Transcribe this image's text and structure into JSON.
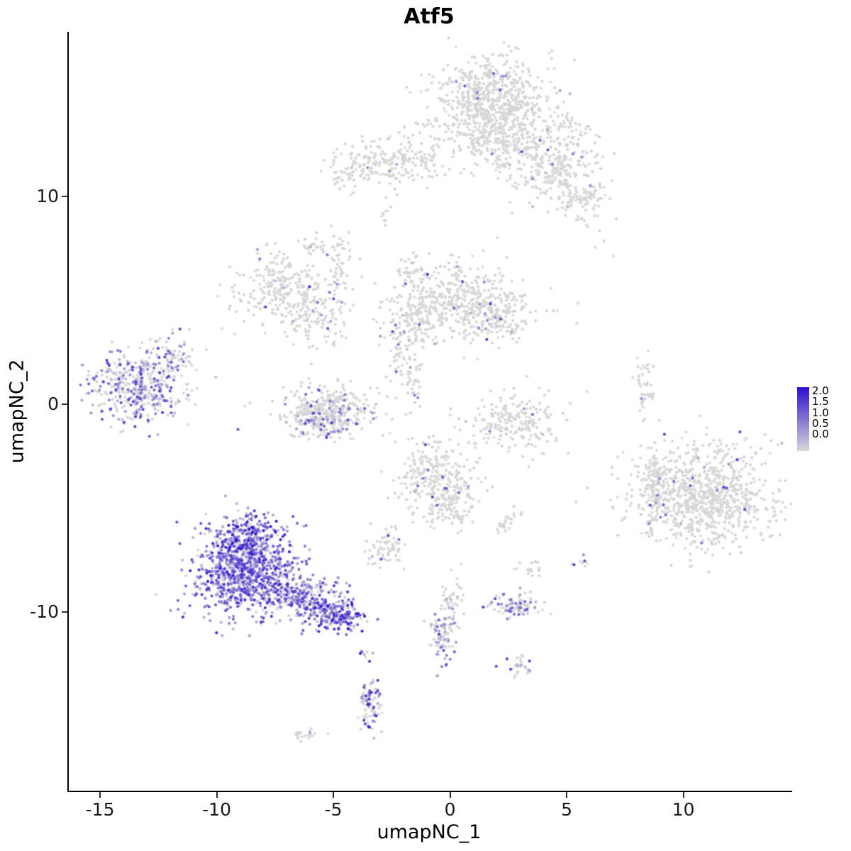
{
  "chart_data": {
    "type": "scatter",
    "title": "Atf5",
    "xlabel": "umapNC_1",
    "ylabel": "umapNC_2",
    "xlim": [
      -16.4,
      14.6
    ],
    "ylim": [
      -18.6,
      17.9
    ],
    "grid": false,
    "point_radius": 2.1,
    "color_low": "#D8D8D8",
    "color_high": "#2C0FD1",
    "value_min": 0.0,
    "value_max": 2.0,
    "x_ticks": [
      {
        "label": "-15",
        "value": -15
      },
      {
        "label": "-10",
        "value": -10
      },
      {
        "label": "-5",
        "value": -5
      },
      {
        "label": "0",
        "value": 0
      },
      {
        "label": "5",
        "value": 5
      },
      {
        "label": "10",
        "value": 10
      }
    ],
    "y_ticks": [
      {
        "label": "10",
        "value": 10
      },
      {
        "label": "0",
        "value": 0
      },
      {
        "label": "-10",
        "value": -10
      }
    ],
    "clusters": [
      {
        "x": 1.6,
        "y": 14.6,
        "sx": 1.15,
        "sy": 1.0,
        "n": 650,
        "f": 0.02,
        "m": 0.9
      },
      {
        "x": 1.3,
        "y": 12.9,
        "sx": 1.3,
        "sy": 0.7,
        "n": 130,
        "f": 0.02,
        "m": 0.8
      },
      {
        "x": 3.0,
        "y": 12.2,
        "sx": 0.8,
        "sy": 0.8,
        "n": 140,
        "f": 0.03,
        "m": 0.8
      },
      {
        "x": 4.5,
        "y": 11.4,
        "sx": 0.9,
        "sy": 0.8,
        "n": 200,
        "f": 0.03,
        "m": 0.9
      },
      {
        "x": 5.6,
        "y": 9.9,
        "sx": 0.6,
        "sy": 0.5,
        "n": 90,
        "f": 0.02,
        "m": 0.8
      },
      {
        "x": 5.0,
        "y": 13.2,
        "sx": 0.5,
        "sy": 0.5,
        "n": 50,
        "f": 0.02,
        "m": 0.8
      },
      {
        "x": -2.3,
        "y": 11.7,
        "sx": 1.3,
        "sy": 0.55,
        "n": 200,
        "f": 0.015,
        "m": 0.8
      },
      {
        "x": -4.4,
        "y": 11.3,
        "sx": 0.5,
        "sy": 0.4,
        "n": 50,
        "f": 0.02,
        "m": 0.8
      },
      {
        "x": -2.9,
        "y": 9.1,
        "sx": 0.15,
        "sy": 0.3,
        "n": 10,
        "f": 0.0,
        "m": 0.0
      },
      {
        "x": -7.3,
        "y": 5.6,
        "sx": 1.0,
        "sy": 0.85,
        "n": 260,
        "f": 0.04,
        "m": 1.0
      },
      {
        "x": -5.7,
        "y": 4.3,
        "sx": 0.7,
        "sy": 0.7,
        "n": 110,
        "f": 0.05,
        "m": 1.0
      },
      {
        "x": -4.9,
        "y": 6.6,
        "sx": 0.3,
        "sy": 0.9,
        "n": 55,
        "f": 0.04,
        "m": 0.9
      },
      {
        "x": -6.0,
        "y": 7.6,
        "sx": 0.3,
        "sy": 0.25,
        "n": 20,
        "f": 0.05,
        "m": 0.8
      },
      {
        "x": 0.2,
        "y": 4.9,
        "sx": 1.5,
        "sy": 0.95,
        "n": 430,
        "f": 0.035,
        "m": 1.0
      },
      {
        "x": 2.0,
        "y": 4.3,
        "sx": 0.7,
        "sy": 0.6,
        "n": 130,
        "f": 0.06,
        "m": 1.1
      },
      {
        "x": -1.4,
        "y": 3.7,
        "sx": 0.8,
        "sy": 0.5,
        "n": 90,
        "f": 0.05,
        "m": 0.9
      },
      {
        "x": -2.3,
        "y": 2.1,
        "sx": 0.25,
        "sy": 0.8,
        "n": 40,
        "f": 0.08,
        "m": 0.9
      },
      {
        "x": -1.7,
        "y": 6.3,
        "sx": 0.4,
        "sy": 0.5,
        "n": 50,
        "f": 0.06,
        "m": 1.0
      },
      {
        "x": -13.4,
        "y": 0.8,
        "sx": 1.05,
        "sy": 0.85,
        "n": 430,
        "f": 0.5,
        "m": 0.95
      },
      {
        "x": -11.9,
        "y": 2.3,
        "sx": 0.5,
        "sy": 0.5,
        "n": 55,
        "f": 0.3,
        "m": 0.9
      },
      {
        "x": -5.3,
        "y": -0.2,
        "sx": 1.05,
        "sy": 0.65,
        "n": 330,
        "f": 0.12,
        "m": 0.9
      },
      {
        "x": -5.5,
        "y": -1.0,
        "sx": 0.7,
        "sy": 0.35,
        "n": 120,
        "f": 0.3,
        "m": 1.0
      },
      {
        "x": -1.6,
        "y": 1.0,
        "sx": 0.2,
        "sy": 0.8,
        "n": 35,
        "f": 0.1,
        "m": 0.9
      },
      {
        "x": 2.7,
        "y": -0.9,
        "sx": 0.95,
        "sy": 0.65,
        "n": 210,
        "f": 0.05,
        "m": 0.9
      },
      {
        "x": 8.2,
        "y": 0.7,
        "sx": 0.28,
        "sy": 0.7,
        "n": 45,
        "f": 0.04,
        "m": 0.9
      },
      {
        "x": 10.9,
        "y": -4.4,
        "sx": 1.5,
        "sy": 1.25,
        "n": 850,
        "f": 0.02,
        "m": 1.0
      },
      {
        "x": 9.0,
        "y": -4.0,
        "sx": 0.7,
        "sy": 0.9,
        "n": 140,
        "f": 0.03,
        "m": 1.0
      },
      {
        "x": -0.6,
        "y": -3.6,
        "sx": 0.95,
        "sy": 0.9,
        "n": 290,
        "f": 0.05,
        "m": 1.0
      },
      {
        "x": -0.1,
        "y": -5.2,
        "sx": 0.45,
        "sy": 0.5,
        "n": 60,
        "f": 0.05,
        "m": 0.9
      },
      {
        "x": 2.4,
        "y": -5.6,
        "sx": 0.3,
        "sy": 0.25,
        "n": 25,
        "f": 0.04,
        "m": 0.8
      },
      {
        "x": -2.7,
        "y": -7.0,
        "sx": 0.45,
        "sy": 0.5,
        "n": 65,
        "f": 0.06,
        "m": 0.9
      },
      {
        "x": -8.8,
        "y": -8.1,
        "sx": 1.15,
        "sy": 1.0,
        "n": 850,
        "f": 0.85,
        "m": 1.1
      },
      {
        "x": -8.8,
        "y": -6.3,
        "sx": 0.75,
        "sy": 0.55,
        "n": 220,
        "f": 0.9,
        "m": 1.3
      },
      {
        "x": -6.4,
        "y": -9.3,
        "sx": 0.85,
        "sy": 0.5,
        "n": 240,
        "f": 0.8,
        "m": 1.0
      },
      {
        "x": -5.0,
        "y": -10.2,
        "sx": 0.6,
        "sy": 0.35,
        "n": 190,
        "f": 0.85,
        "m": 1.2
      },
      {
        "x": -3.7,
        "y": -11.8,
        "sx": 0.15,
        "sy": 0.2,
        "n": 8,
        "f": 0.6,
        "m": 1.2
      },
      {
        "x": -0.3,
        "y": -11.0,
        "sx": 0.3,
        "sy": 0.75,
        "n": 90,
        "f": 0.5,
        "m": 1.0
      },
      {
        "x": 0.1,
        "y": -9.3,
        "sx": 0.3,
        "sy": 0.6,
        "n": 35,
        "f": 0.15,
        "m": 0.9
      },
      {
        "x": 2.7,
        "y": -9.7,
        "sx": 0.55,
        "sy": 0.3,
        "n": 90,
        "f": 0.4,
        "m": 0.9
      },
      {
        "x": 2.9,
        "y": -12.6,
        "sx": 0.3,
        "sy": 0.3,
        "n": 30,
        "f": 0.5,
        "m": 1.0
      },
      {
        "x": -3.5,
        "y": -14.4,
        "sx": 0.22,
        "sy": 0.65,
        "n": 85,
        "f": 0.5,
        "m": 1.1
      },
      {
        "x": -6.3,
        "y": -15.9,
        "sx": 0.4,
        "sy": 0.12,
        "n": 22,
        "f": 0.05,
        "m": 0.8
      },
      {
        "x": 5.4,
        "y": -7.6,
        "sx": 0.18,
        "sy": 0.15,
        "n": 8,
        "f": 0.5,
        "m": 1.0
      },
      {
        "x": 3.4,
        "y": -7.9,
        "sx": 0.25,
        "sy": 0.2,
        "n": 15,
        "f": 0.1,
        "m": 0.9
      },
      {
        "x": 6.7,
        "y": 7.4,
        "sx": 0.3,
        "sy": 0.5,
        "n": 4,
        "f": 0.0,
        "m": 0.0
      }
    ]
  },
  "legend": {
    "labels": [
      "2.0",
      "1.5",
      "1.0",
      "0.5",
      "0.0"
    ]
  }
}
